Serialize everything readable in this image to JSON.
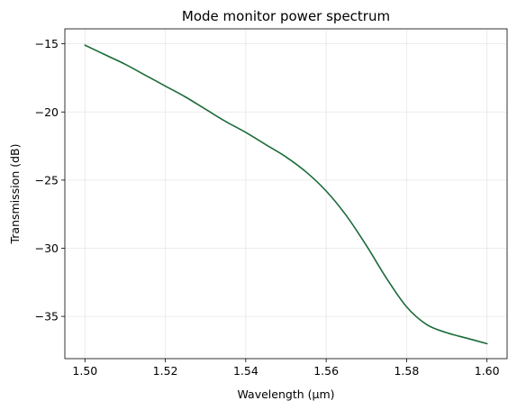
{
  "chart_data": {
    "type": "line",
    "title": "Mode monitor power spectrum",
    "xlabel": "Wavelength (µm)",
    "ylabel": "Transmission (dB)",
    "xlim": [
      1.495,
      1.605
    ],
    "ylim": [
      -38.1,
      -13.9
    ],
    "grid": true,
    "x_ticks": [
      1.5,
      1.52,
      1.54,
      1.56,
      1.58,
      1.6
    ],
    "x_tick_labels": [
      "1.50",
      "1.52",
      "1.54",
      "1.56",
      "1.58",
      "1.60"
    ],
    "y_ticks": [
      -15,
      -20,
      -25,
      -30,
      -35
    ],
    "y_tick_labels": [
      "−15",
      "−20",
      "−25",
      "−30",
      "−35"
    ],
    "series": [
      {
        "color": "#1a6b38",
        "x": [
          1.5,
          1.505,
          1.51,
          1.515,
          1.52,
          1.525,
          1.53,
          1.535,
          1.54,
          1.545,
          1.55,
          1.555,
          1.56,
          1.565,
          1.57,
          1.575,
          1.58,
          1.585,
          1.59,
          1.595,
          1.6
        ],
        "y": [
          -15.1,
          -15.8,
          -16.5,
          -17.3,
          -18.1,
          -18.9,
          -19.8,
          -20.7,
          -21.5,
          -22.4,
          -23.3,
          -24.4,
          -25.8,
          -27.6,
          -29.8,
          -32.2,
          -34.3,
          -35.6,
          -36.2,
          -36.6,
          -37.0
        ]
      }
    ]
  }
}
